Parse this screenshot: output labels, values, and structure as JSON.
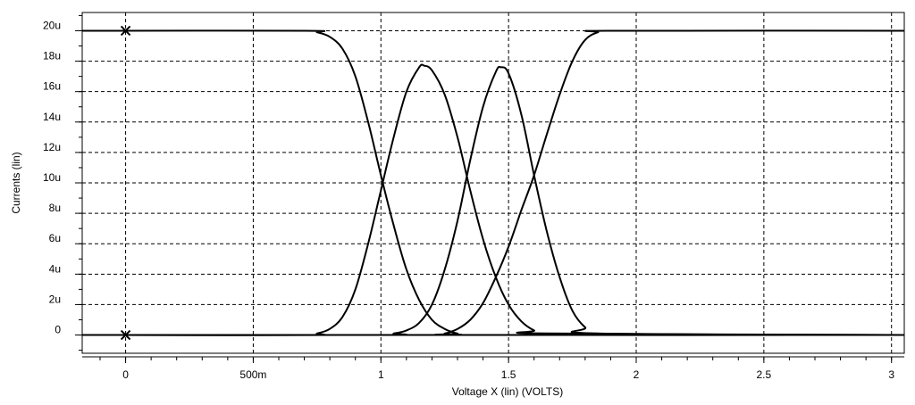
{
  "chart_data": {
    "type": "line",
    "title": "",
    "xlabel": "Voltage X (lin) (VOLTS)",
    "ylabel": "Currents (lin)",
    "xlim": [
      -0.17,
      3.05
    ],
    "ylim": [
      -1.2,
      21.2
    ],
    "x_ticks": [
      {
        "value": 0,
        "label": "0"
      },
      {
        "value": 0.5,
        "label": "500m"
      },
      {
        "value": 1,
        "label": "1"
      },
      {
        "value": 1.5,
        "label": "1.5"
      },
      {
        "value": 2,
        "label": "2"
      },
      {
        "value": 2.5,
        "label": "2.5"
      },
      {
        "value": 3,
        "label": "3"
      }
    ],
    "y_ticks": [
      {
        "value": 0,
        "label": "0"
      },
      {
        "value": 2,
        "label": "2u"
      },
      {
        "value": 4,
        "label": "4u"
      },
      {
        "value": 6,
        "label": "6u"
      },
      {
        "value": 8,
        "label": "8u"
      },
      {
        "value": 10,
        "label": "10u"
      },
      {
        "value": 12,
        "label": "12u"
      },
      {
        "value": 14,
        "label": "14u"
      },
      {
        "value": 16,
        "label": "16u"
      },
      {
        "value": 18,
        "label": "18u"
      },
      {
        "value": 20,
        "label": "20u"
      }
    ],
    "grid": true,
    "grid_style": "dashed",
    "line_color": "#000000",
    "series": [
      {
        "x": [
          -0.17,
          0.7,
          0.75,
          0.8,
          0.85,
          0.9,
          0.95,
          1.0,
          1.05,
          1.1,
          1.15,
          1.2,
          1.25,
          1.3,
          1.35,
          3.05
        ],
        "y": [
          20,
          20,
          19.9,
          19.6,
          18.8,
          17.0,
          14.0,
          10.5,
          7.2,
          4.3,
          2.3,
          1.0,
          0.4,
          0.1,
          0,
          0
        ]
      },
      {
        "x": [
          -0.17,
          0.7,
          0.75,
          0.8,
          0.85,
          0.9,
          0.95,
          1.0,
          1.05,
          1.1,
          1.15,
          1.17,
          1.2,
          1.25,
          1.3,
          1.35,
          1.4,
          1.45,
          1.5,
          1.55,
          1.6,
          1.65,
          3.05
        ],
        "y": [
          0,
          0,
          0.1,
          0.4,
          1.2,
          3.0,
          6.0,
          9.5,
          13.0,
          16.0,
          17.6,
          17.7,
          17.4,
          15.8,
          13.0,
          9.5,
          6.3,
          3.8,
          2.0,
          0.9,
          0.3,
          0.1,
          0
        ]
      },
      {
        "x": [
          -0.17,
          1.0,
          1.05,
          1.1,
          1.15,
          1.2,
          1.25,
          1.3,
          1.35,
          1.4,
          1.45,
          1.47,
          1.5,
          1.55,
          1.6,
          1.65,
          1.7,
          1.75,
          1.8,
          1.85,
          3.05
        ],
        "y": [
          0,
          0,
          0.1,
          0.3,
          0.8,
          2.0,
          4.3,
          7.5,
          11.5,
          15.0,
          17.3,
          17.6,
          17.2,
          14.5,
          10.5,
          6.8,
          3.8,
          1.6,
          0.5,
          0.1,
          0
        ]
      },
      {
        "x": [
          -0.17,
          1.2,
          1.25,
          1.3,
          1.35,
          1.4,
          1.45,
          1.5,
          1.55,
          1.6,
          1.65,
          1.7,
          1.75,
          1.8,
          1.85,
          1.9,
          3.05
        ],
        "y": [
          0,
          0,
          0.1,
          0.4,
          1.0,
          2.1,
          3.8,
          5.8,
          8.2,
          10.5,
          13.2,
          15.8,
          18.0,
          19.4,
          19.9,
          20,
          20
        ]
      }
    ],
    "markers": [
      {
        "x": 0,
        "y": 20,
        "symbol": "x"
      },
      {
        "x": 0,
        "y": 0,
        "symbol": "x"
      }
    ]
  }
}
